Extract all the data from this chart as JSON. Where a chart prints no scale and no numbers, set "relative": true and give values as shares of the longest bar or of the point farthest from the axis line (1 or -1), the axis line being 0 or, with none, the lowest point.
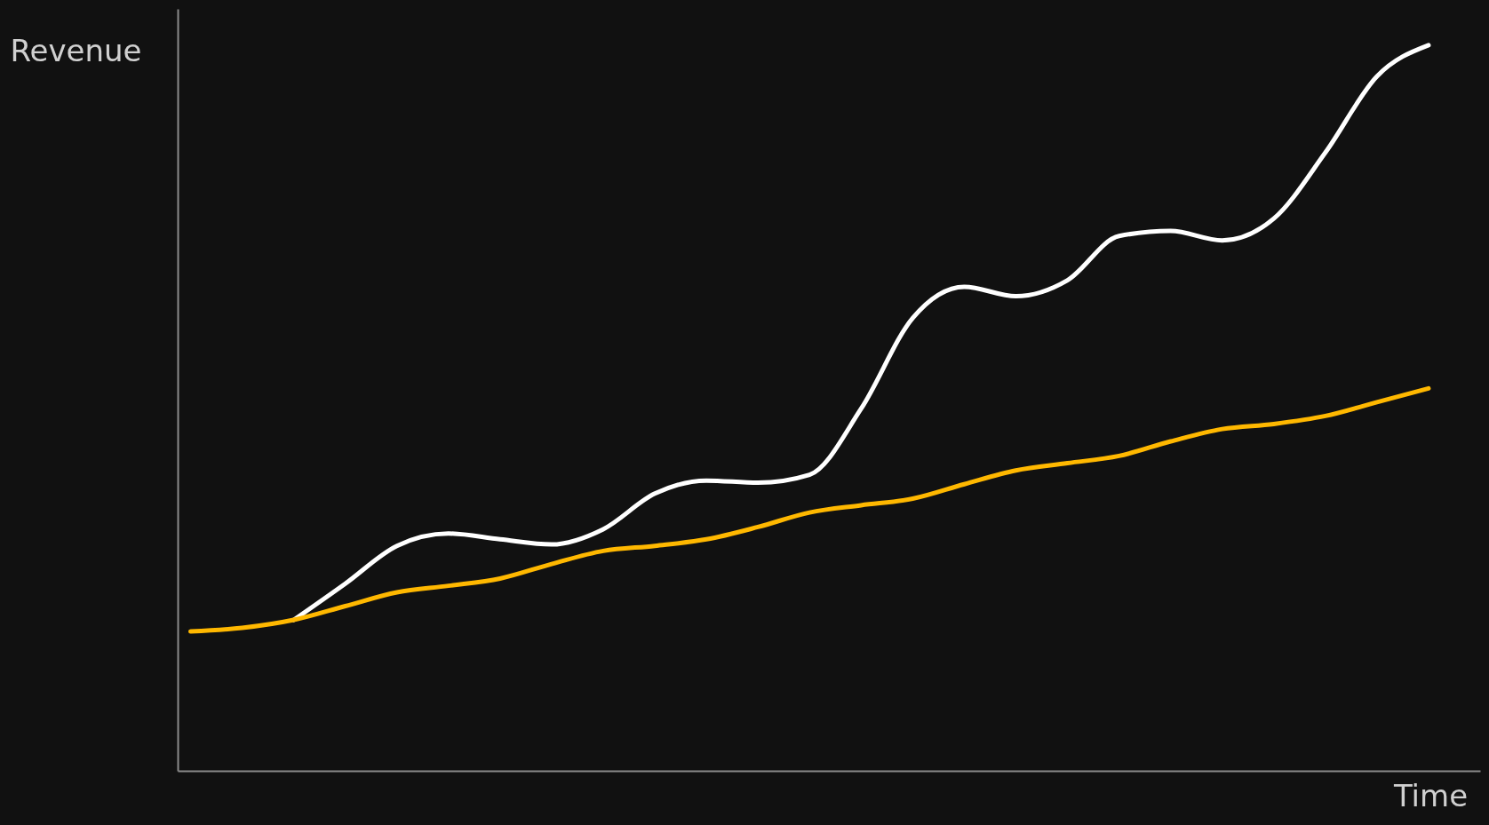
{
  "chart_data": {
    "type": "line",
    "relative": true,
    "xlabel": "Time",
    "ylabel": "Revenue",
    "grid": false,
    "marker": "none",
    "line_style": "solid",
    "categories": [
      null,
      null,
      null,
      null,
      null,
      null,
      null,
      null,
      null,
      null,
      null,
      null,
      null,
      null,
      null,
      null,
      null,
      null,
      null,
      null,
      null,
      null,
      null,
      null,
      null
    ],
    "series": [
      {
        "color": "#ffffff",
        "values": [
          null,
          null,
          0.208,
          0.258,
          0.31,
          0.327,
          0.319,
          0.312,
          0.333,
          0.382,
          0.4,
          0.397,
          0.408,
          0.499,
          0.624,
          0.667,
          0.654,
          0.676,
          0.737,
          0.744,
          0.731,
          0.761,
          0.852,
          0.957,
          1
        ]
      },
      {
        "color": "#ffb800",
        "values": [
          0.192,
          0.197,
          0.208,
          0.227,
          0.246,
          0.255,
          0.265,
          0.285,
          0.303,
          0.31,
          0.319,
          0.336,
          0.356,
          0.366,
          0.375,
          0.395,
          0.414,
          0.424,
          0.434,
          0.454,
          0.471,
          0.478,
          0.489,
          0.508,
          0.527
        ]
      }
    ]
  }
}
